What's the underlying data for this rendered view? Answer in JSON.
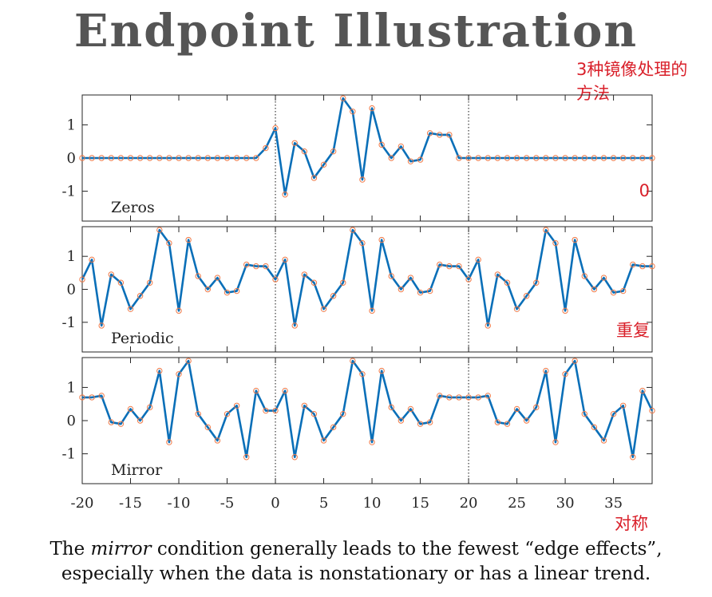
{
  "title": "Endpoint Illustration",
  "top_note": "3种镜像处理的方法",
  "caption": {
    "line1_before": "The ",
    "line1_emph": "mirror",
    "line1_after": " condition generally leads to the fewest “edge effects”,",
    "line2": "especially when the data is nonstationary or has a linear trend."
  },
  "colors": {
    "line": "#0a6fb8",
    "marker": "#f07a48",
    "note": "#d9202a",
    "title": "#555555"
  },
  "chart_data": [
    {
      "type": "line",
      "panel_label": "Zeros",
      "note": "0",
      "x_start": -20,
      "xlim": [
        -20,
        39
      ],
      "ylim": [
        -1.9,
        1.9
      ],
      "yticks": [
        -1,
        0,
        1
      ],
      "dividers": [
        0,
        20
      ],
      "values": [
        0,
        0,
        0,
        0,
        0,
        0,
        0,
        0,
        0,
        0,
        0,
        0,
        0,
        0,
        0,
        0,
        0,
        0,
        0,
        0.3,
        0.9,
        -1.1,
        0.45,
        0.2,
        -0.6,
        -0.2,
        0.2,
        1.8,
        1.4,
        -0.65,
        1.5,
        0.4,
        0,
        0.35,
        -0.1,
        -0.05,
        0.75,
        0.7,
        0.7,
        0,
        0,
        0,
        0,
        0,
        0,
        0,
        0,
        0,
        0,
        0,
        0,
        0,
        0,
        0,
        0,
        0,
        0,
        0,
        0,
        0
      ]
    },
    {
      "type": "line",
      "panel_label": "Periodic",
      "note": "重复",
      "x_start": -20,
      "xlim": [
        -20,
        39
      ],
      "ylim": [
        -1.9,
        1.9
      ],
      "yticks": [
        -1,
        0,
        1
      ],
      "dividers": [
        0,
        20
      ],
      "values": [
        0.3,
        0.9,
        -1.1,
        0.45,
        0.2,
        -0.6,
        -0.2,
        0.2,
        1.8,
        1.4,
        -0.65,
        1.5,
        0.4,
        0,
        0.35,
        -0.1,
        -0.05,
        0.75,
        0.7,
        0.7,
        0.3,
        0.9,
        -1.1,
        0.45,
        0.2,
        -0.6,
        -0.2,
        0.2,
        1.8,
        1.4,
        -0.65,
        1.5,
        0.4,
        0,
        0.35,
        -0.1,
        -0.05,
        0.75,
        0.7,
        0.7,
        0.3,
        0.9,
        -1.1,
        0.45,
        0.2,
        -0.6,
        -0.2,
        0.2,
        1.8,
        1.4,
        -0.65,
        1.5,
        0.4,
        0,
        0.35,
        -0.1,
        -0.05,
        0.75,
        0.7,
        0.7
      ]
    },
    {
      "type": "line",
      "panel_label": "Mirror",
      "note": "",
      "x_start": -20,
      "xlim": [
        -20,
        39
      ],
      "ylim": [
        -1.9,
        1.9
      ],
      "yticks": [
        -1,
        0,
        1
      ],
      "dividers": [
        0,
        20
      ],
      "values": [
        0.7,
        0.7,
        0.75,
        -0.05,
        -0.1,
        0.35,
        0,
        0.4,
        1.5,
        -0.65,
        1.4,
        1.8,
        0.2,
        -0.2,
        -0.6,
        0.2,
        0.45,
        -1.1,
        0.9,
        0.3,
        0.3,
        0.9,
        -1.1,
        0.45,
        0.2,
        -0.6,
        -0.2,
        0.2,
        1.8,
        1.4,
        -0.65,
        1.5,
        0.4,
        0,
        0.35,
        -0.1,
        -0.05,
        0.75,
        0.7,
        0.7,
        0.7,
        0.7,
        0.75,
        -0.05,
        -0.1,
        0.35,
        0,
        0.4,
        1.5,
        -0.65,
        1.4,
        1.8,
        0.2,
        -0.2,
        -0.6,
        0.2,
        0.45,
        -1.1,
        0.9,
        0.3
      ]
    }
  ],
  "xaxis": {
    "ticks": [
      -20,
      -15,
      -10,
      -5,
      0,
      5,
      10,
      15,
      20,
      25,
      30,
      35
    ],
    "tick_labels": [
      "-20",
      "-15",
      "-10",
      "-5",
      "0",
      "5",
      "10",
      "15",
      "20",
      "25",
      "30",
      "35"
    ],
    "note": "对称"
  }
}
